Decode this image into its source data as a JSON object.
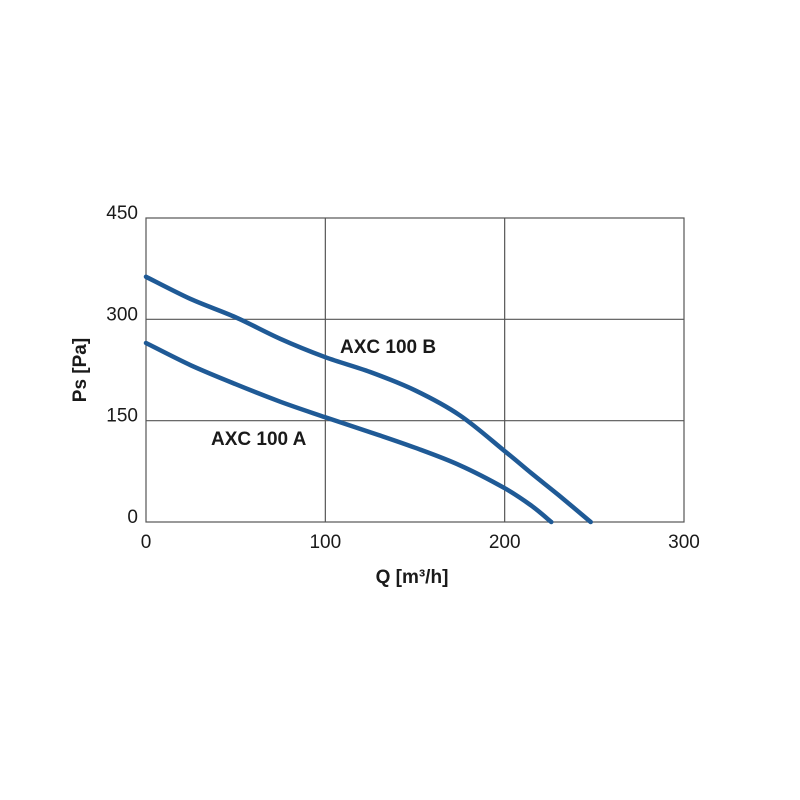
{
  "chart_data": {
    "type": "line",
    "xlabel": "Q [m³/h]",
    "ylabel": "Ps [Pa]",
    "xlim": [
      0,
      300
    ],
    "ylim": [
      0,
      450
    ],
    "xticks": [
      0,
      100,
      200,
      300
    ],
    "yticks": [
      0,
      150,
      300,
      450
    ],
    "grid": true,
    "line_color": "#1f5a96",
    "series": [
      {
        "name": "AXC 100 A",
        "x": [
          0,
          25,
          50,
          75,
          100,
          125,
          150,
          175,
          200,
          215,
          226
        ],
        "y": [
          265,
          232,
          204,
          178,
          155,
          133,
          110,
          84,
          50,
          24,
          0
        ]
      },
      {
        "name": "AXC 100 B",
        "x": [
          0,
          25,
          50,
          75,
          100,
          125,
          150,
          175,
          200,
          215,
          230,
          248
        ],
        "y": [
          363,
          330,
          303,
          271,
          244,
          222,
          195,
          158,
          105,
          72,
          40,
          0
        ]
      }
    ]
  }
}
